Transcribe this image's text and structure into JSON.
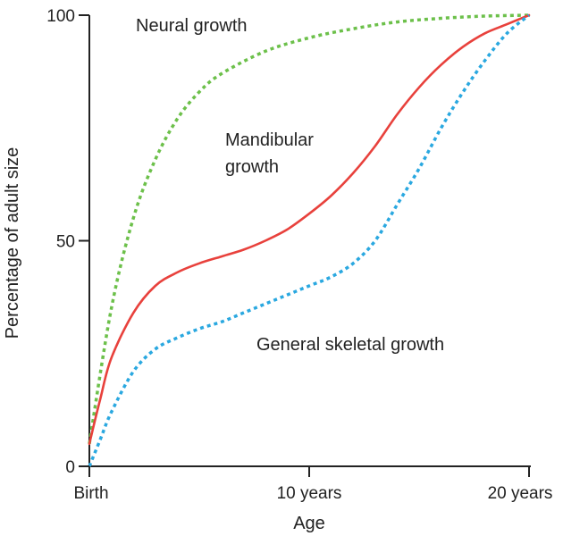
{
  "chart_data": {
    "type": "line",
    "title": "",
    "xlabel": "Age",
    "ylabel": "Percentage of adult size",
    "x_ticks": [
      {
        "value": 0,
        "label": "Birth"
      },
      {
        "value": 10,
        "label": "10 years"
      },
      {
        "value": 20,
        "label": "20 years"
      }
    ],
    "y_ticks": [
      {
        "value": 0,
        "label": "0"
      },
      {
        "value": 50,
        "label": "50"
      },
      {
        "value": 100,
        "label": "100"
      }
    ],
    "xlim": [
      0,
      20
    ],
    "ylim": [
      0,
      100
    ],
    "grid": false,
    "legend": "none",
    "series": [
      {
        "key": "neural",
        "style": "dotted",
        "color": "#6cc04a",
        "x": [
          0,
          1,
          2,
          3,
          4,
          5,
          6,
          8,
          10,
          12,
          14,
          16,
          18,
          20
        ],
        "y": [
          5,
          35,
          55,
          68,
          77,
          83,
          87,
          92,
          95,
          97,
          98.5,
          99.3,
          99.8,
          100
        ]
      },
      {
        "key": "mandibular",
        "style": "solid",
        "color": "#e8413c",
        "x": [
          0,
          0.5,
          1,
          2,
          3,
          4,
          5,
          6,
          7,
          8,
          9,
          10,
          11,
          12,
          13,
          14,
          15,
          16,
          17,
          18,
          19,
          20
        ],
        "y": [
          5,
          15,
          24,
          34,
          40,
          43,
          45,
          46.5,
          48,
          50,
          52.5,
          56,
          60,
          65,
          71,
          78,
          84,
          89,
          93,
          96,
          98,
          100
        ]
      },
      {
        "key": "skeletal",
        "style": "dotted",
        "color": "#2aa8e0",
        "x": [
          0,
          0.5,
          1,
          2,
          3,
          4,
          5,
          6,
          7,
          8,
          9,
          10,
          11,
          12,
          13,
          14,
          15,
          16,
          17,
          18,
          19,
          20
        ],
        "y": [
          0,
          6,
          12,
          21,
          26,
          28.5,
          30.5,
          32,
          34,
          36,
          38,
          40,
          42,
          45,
          50,
          58,
          66,
          75,
          83,
          90,
          96,
          100
        ]
      }
    ],
    "annotations": [
      {
        "key": "neural",
        "lines": [
          "Neural growth"
        ]
      },
      {
        "key": "mandibular",
        "lines": [
          "Mandibular",
          "growth"
        ]
      },
      {
        "key": "skeletal",
        "lines": [
          "General skeletal growth"
        ]
      }
    ]
  }
}
